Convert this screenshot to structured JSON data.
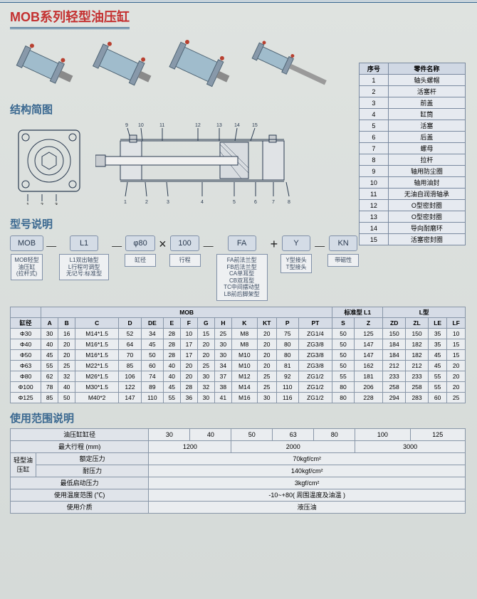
{
  "title": "MOB系列轻型油压缸",
  "sections": {
    "structure": "结构简图",
    "model": "型号说明",
    "range": "使用范围说明"
  },
  "parts": {
    "headers": [
      "序号",
      "零件名称"
    ],
    "rows": [
      [
        "1",
        "轴头螺帽"
      ],
      [
        "2",
        "活塞杆"
      ],
      [
        "3",
        "前盖"
      ],
      [
        "4",
        "缸筒"
      ],
      [
        "5",
        "活塞"
      ],
      [
        "6",
        "后盖"
      ],
      [
        "7",
        "螺母"
      ],
      [
        "8",
        "拉杆"
      ],
      [
        "9",
        "轴用防尘圈"
      ],
      [
        "10",
        "轴用油封"
      ],
      [
        "11",
        "无油自润滑轴承"
      ],
      [
        "12",
        "O型密封圈"
      ],
      [
        "13",
        "O型密封圈"
      ],
      [
        "14",
        "导向耐磨环"
      ],
      [
        "15",
        "活塞密封圈"
      ]
    ]
  },
  "model": {
    "boxes": [
      "MOB",
      "L1",
      "φ80",
      "100",
      "FA",
      "Y",
      "KN"
    ],
    "descs": [
      "MOB轻型\n油压缸\n(拉杆式)",
      "L1双出轴型\nL行程可调型\n无记号:标准型",
      "缸径",
      "行程",
      "FA前法兰型\nFB后法兰型\nCA单耳型\nCB双耳型\nTC中间摆动型\nLB前后脚架型",
      "Y型接头\nT型接头",
      "带磁性"
    ]
  },
  "spec": {
    "group_headers": [
      "",
      "MOB",
      "标准型 L1",
      "L型"
    ],
    "columns": [
      "缸径",
      "A",
      "B",
      "C",
      "D",
      "DE",
      "E",
      "F",
      "G",
      "H",
      "K",
      "KT",
      "P",
      "PT",
      "S",
      "Z",
      "ZD",
      "ZL",
      "LE",
      "LF"
    ],
    "rows": [
      [
        "Φ30",
        "30",
        "16",
        "M14*1.5",
        "52",
        "34",
        "28",
        "10",
        "15",
        "25",
        "M8",
        "20",
        "75",
        "ZG1/4",
        "50",
        "125",
        "150",
        "150",
        "35",
        "10"
      ],
      [
        "Φ40",
        "40",
        "20",
        "M16*1.5",
        "64",
        "45",
        "28",
        "17",
        "20",
        "30",
        "M8",
        "20",
        "80",
        "ZG3/8",
        "50",
        "147",
        "184",
        "182",
        "35",
        "15"
      ],
      [
        "Φ50",
        "45",
        "20",
        "M16*1.5",
        "70",
        "50",
        "28",
        "17",
        "20",
        "30",
        "M10",
        "20",
        "80",
        "ZG3/8",
        "50",
        "147",
        "184",
        "182",
        "45",
        "15"
      ],
      [
        "Φ63",
        "55",
        "25",
        "M22*1.5",
        "85",
        "60",
        "40",
        "20",
        "25",
        "34",
        "M10",
        "20",
        "81",
        "ZG3/8",
        "50",
        "162",
        "212",
        "212",
        "45",
        "20"
      ],
      [
        "Φ80",
        "62",
        "32",
        "M26*1.5",
        "106",
        "74",
        "40",
        "20",
        "30",
        "37",
        "M12",
        "25",
        "92",
        "ZG1/2",
        "55",
        "181",
        "233",
        "233",
        "55",
        "20"
      ],
      [
        "Φ100",
        "78",
        "40",
        "M30*1.5",
        "122",
        "89",
        "45",
        "28",
        "32",
        "38",
        "M14",
        "25",
        "110",
        "ZG1/2",
        "80",
        "206",
        "258",
        "258",
        "55",
        "20"
      ],
      [
        "Φ125",
        "85",
        "50",
        "M40*2",
        "147",
        "110",
        "55",
        "36",
        "30",
        "41",
        "M16",
        "30",
        "116",
        "ZG1/2",
        "80",
        "228",
        "294",
        "283",
        "60",
        "25"
      ]
    ]
  },
  "range": {
    "row_bore": {
      "label": "油压缸缸径",
      "vals": [
        "30",
        "40",
        "50",
        "63",
        "80",
        "100",
        "125"
      ]
    },
    "row_stroke": {
      "label": "最大行程 (mm)",
      "vals": [
        "1200",
        "2000",
        "3000"
      ]
    },
    "grouplabel": "轻型油压缸",
    "row_rated": {
      "label": "额定压力",
      "val": "70kgf/cm²"
    },
    "row_proof": {
      "label": "耐压力",
      "val": "140kgf/cm²"
    },
    "row_start": {
      "label": "最低启动压力",
      "val": "3kgf/cm²"
    },
    "row_temp": {
      "label": "使用温度范围 (℃)",
      "val": "-10~+80( 周围温度及油温 )"
    },
    "row_medium": {
      "label": "使用介质",
      "val": "液压油"
    }
  }
}
